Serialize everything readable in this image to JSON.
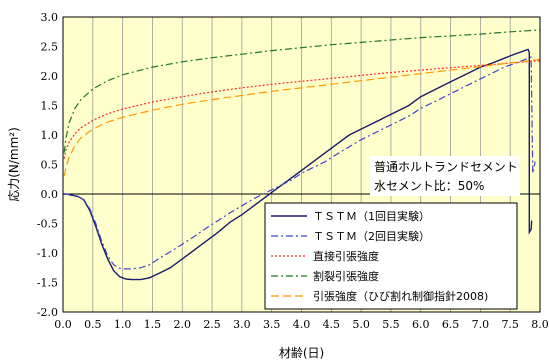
{
  "chart_data": {
    "type": "line",
    "xlabel": "材齢(日)",
    "ylabel": "応力(N/mm²)",
    "xlim": [
      0.0,
      8.0
    ],
    "ylim": [
      -2.0,
      3.0
    ],
    "x_ticks": [
      "0.0",
      "0.5",
      "1.0",
      "1.5",
      "2.0",
      "2.5",
      "3.0",
      "3.5",
      "4.0",
      "4.5",
      "5.0",
      "5.5",
      "6.0",
      "6.5",
      "7.0",
      "7.5",
      "8.0"
    ],
    "y_ticks": [
      "3.0",
      "2.5",
      "2.0",
      "1.5",
      "1.0",
      "0.5",
      "0.0",
      "-0.5",
      "-1.0",
      "-1.5",
      "-2.0"
    ],
    "plot_background": "#ffffcc",
    "grid": "vertical",
    "annotation": [
      "普通ホルトランドセメント",
      "水セメント比：50%"
    ],
    "legend_position": "lower-right",
    "series": [
      {
        "name": "ＴＳＴＭ（1回目実験）",
        "color": "#1a1a6e",
        "dash": "solid",
        "x": [
          0.0,
          0.05,
          0.15,
          0.25,
          0.35,
          0.45,
          0.55,
          0.65,
          0.75,
          0.85,
          0.95,
          1.05,
          1.15,
          1.3,
          1.45,
          1.6,
          1.8,
          2.0,
          2.2,
          2.4,
          2.6,
          2.8,
          3.0,
          3.2,
          3.4,
          3.6,
          3.8,
          4.0,
          4.2,
          4.4,
          4.6,
          4.8,
          5.0,
          5.2,
          5.4,
          5.6,
          5.8,
          6.0,
          6.2,
          6.4,
          6.6,
          6.8,
          7.0,
          7.2,
          7.4,
          7.6,
          7.72,
          7.8,
          7.82,
          7.82,
          7.85,
          7.86
        ],
        "y": [
          0.0,
          0.0,
          -0.02,
          -0.04,
          -0.1,
          -0.28,
          -0.55,
          -0.85,
          -1.1,
          -1.3,
          -1.4,
          -1.44,
          -1.45,
          -1.45,
          -1.42,
          -1.35,
          -1.25,
          -1.1,
          -0.95,
          -0.8,
          -0.65,
          -0.48,
          -0.35,
          -0.2,
          -0.05,
          0.1,
          0.25,
          0.4,
          0.55,
          0.7,
          0.85,
          1.0,
          1.1,
          1.2,
          1.3,
          1.4,
          1.5,
          1.65,
          1.75,
          1.85,
          1.95,
          2.05,
          2.15,
          2.22,
          2.3,
          2.38,
          2.42,
          2.45,
          2.4,
          -0.65,
          -0.6,
          -0.45
        ]
      },
      {
        "name": "ＴＳＴＭ（2回目実験）",
        "color": "#4444cc",
        "dash": "dashdot",
        "x": [
          0.0,
          0.05,
          0.15,
          0.25,
          0.35,
          0.45,
          0.55,
          0.65,
          0.75,
          0.85,
          0.95,
          1.05,
          1.15,
          1.3,
          1.45,
          1.6,
          1.8,
          2.0,
          2.2,
          2.4,
          2.6,
          2.8,
          3.0,
          3.2,
          3.4,
          3.6,
          3.8,
          4.0,
          4.2,
          4.4,
          4.6,
          4.8,
          5.0,
          5.2,
          5.4,
          5.6,
          5.8,
          6.0,
          6.2,
          6.4,
          6.6,
          6.8,
          7.0,
          7.2,
          7.4,
          7.6,
          7.7,
          7.8,
          7.85,
          7.88,
          7.9,
          7.92
        ],
        "y": [
          0.0,
          0.0,
          -0.02,
          -0.04,
          -0.1,
          -0.25,
          -0.5,
          -0.8,
          -1.05,
          -1.2,
          -1.26,
          -1.27,
          -1.27,
          -1.25,
          -1.2,
          -1.1,
          -0.98,
          -0.85,
          -0.72,
          -0.58,
          -0.45,
          -0.32,
          -0.2,
          -0.08,
          0.02,
          0.12,
          0.22,
          0.35,
          0.45,
          0.55,
          0.68,
          0.8,
          0.92,
          1.02,
          1.12,
          1.22,
          1.32,
          1.45,
          1.55,
          1.65,
          1.75,
          1.85,
          1.95,
          2.05,
          2.15,
          2.22,
          2.26,
          2.3,
          2.32,
          0.35,
          0.45,
          0.55
        ]
      },
      {
        "name": "直接引張強度",
        "color": "#ff2a2a",
        "dash": "dotted",
        "x": [
          0.02,
          0.05,
          0.1,
          0.2,
          0.3,
          0.5,
          0.75,
          1.0,
          1.5,
          2.0,
          2.5,
          3.0,
          3.5,
          4.0,
          4.5,
          5.0,
          5.5,
          6.0,
          6.5,
          7.0,
          7.5,
          8.0
        ],
        "y": [
          0.6,
          0.75,
          0.88,
          1.02,
          1.12,
          1.25,
          1.36,
          1.44,
          1.56,
          1.65,
          1.73,
          1.8,
          1.86,
          1.91,
          1.96,
          2.01,
          2.06,
          2.1,
          2.14,
          2.18,
          2.22,
          2.26
        ]
      },
      {
        "name": "割裂引張強度",
        "color": "#227722",
        "dash": "dashdot",
        "x": [
          0.02,
          0.05,
          0.1,
          0.2,
          0.3,
          0.5,
          0.75,
          1.0,
          1.5,
          2.0,
          2.5,
          3.0,
          3.5,
          4.0,
          4.5,
          5.0,
          5.5,
          6.0,
          6.5,
          7.0,
          7.5,
          8.0
        ],
        "y": [
          0.7,
          0.95,
          1.2,
          1.45,
          1.6,
          1.78,
          1.92,
          2.02,
          2.15,
          2.24,
          2.31,
          2.37,
          2.43,
          2.48,
          2.53,
          2.57,
          2.61,
          2.65,
          2.68,
          2.71,
          2.75,
          2.78
        ]
      },
      {
        "name": "引張強度（ひび割れ制御指針2008)",
        "color": "#ff9900",
        "dash": "longdash",
        "x": [
          0.02,
          0.05,
          0.1,
          0.2,
          0.3,
          0.5,
          0.75,
          1.0,
          1.5,
          2.0,
          2.5,
          3.0,
          3.5,
          4.0,
          4.5,
          5.0,
          5.5,
          6.0,
          6.5,
          7.0,
          7.5,
          8.0
        ],
        "y": [
          0.3,
          0.45,
          0.62,
          0.82,
          0.95,
          1.1,
          1.22,
          1.3,
          1.42,
          1.52,
          1.6,
          1.67,
          1.74,
          1.8,
          1.86,
          1.92,
          1.98,
          2.04,
          2.1,
          2.16,
          2.22,
          2.28
        ]
      }
    ]
  }
}
